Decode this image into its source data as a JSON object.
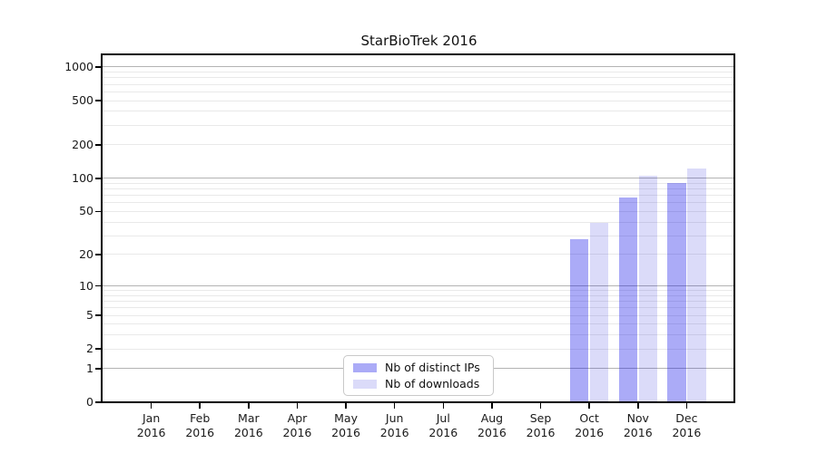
{
  "title": "StarBioTrek 2016",
  "chart_data": {
    "type": "bar",
    "title": "StarBioTrek 2016",
    "scale": "mirrorlog",
    "scale_note": "vertical position proportional to log10(1+value), 0 at baseline",
    "months": [
      "Jan",
      "Feb",
      "Mar",
      "Apr",
      "May",
      "Jun",
      "Jul",
      "Aug",
      "Sep",
      "Oct",
      "Nov",
      "Dec"
    ],
    "year": "2016",
    "series": [
      {
        "name": "Nb of distinct IPs",
        "color": "#0000e6",
        "alpha": 0.33,
        "values": [
          0,
          0,
          0,
          0,
          0,
          0,
          0,
          0,
          0,
          28,
          67,
          90
        ]
      },
      {
        "name": "Nb of downloads",
        "color": "#0000d2",
        "alpha": 0.14,
        "values": [
          0,
          0,
          0,
          0,
          0,
          0,
          0,
          0,
          0,
          39,
          105,
          123
        ]
      }
    ],
    "y_ticks": [
      0,
      1,
      2,
      5,
      10,
      20,
      50,
      100,
      200,
      500,
      1000
    ],
    "ylim": [
      0,
      1275
    ],
    "grid": {
      "major_at": [
        1,
        10,
        100,
        1000
      ],
      "major_color": "#b3b3b3",
      "minor_color": "#e9e9e9"
    },
    "axis_color": "#000000",
    "text_color": "#1a1a1a",
    "legend_position": "lower center"
  }
}
